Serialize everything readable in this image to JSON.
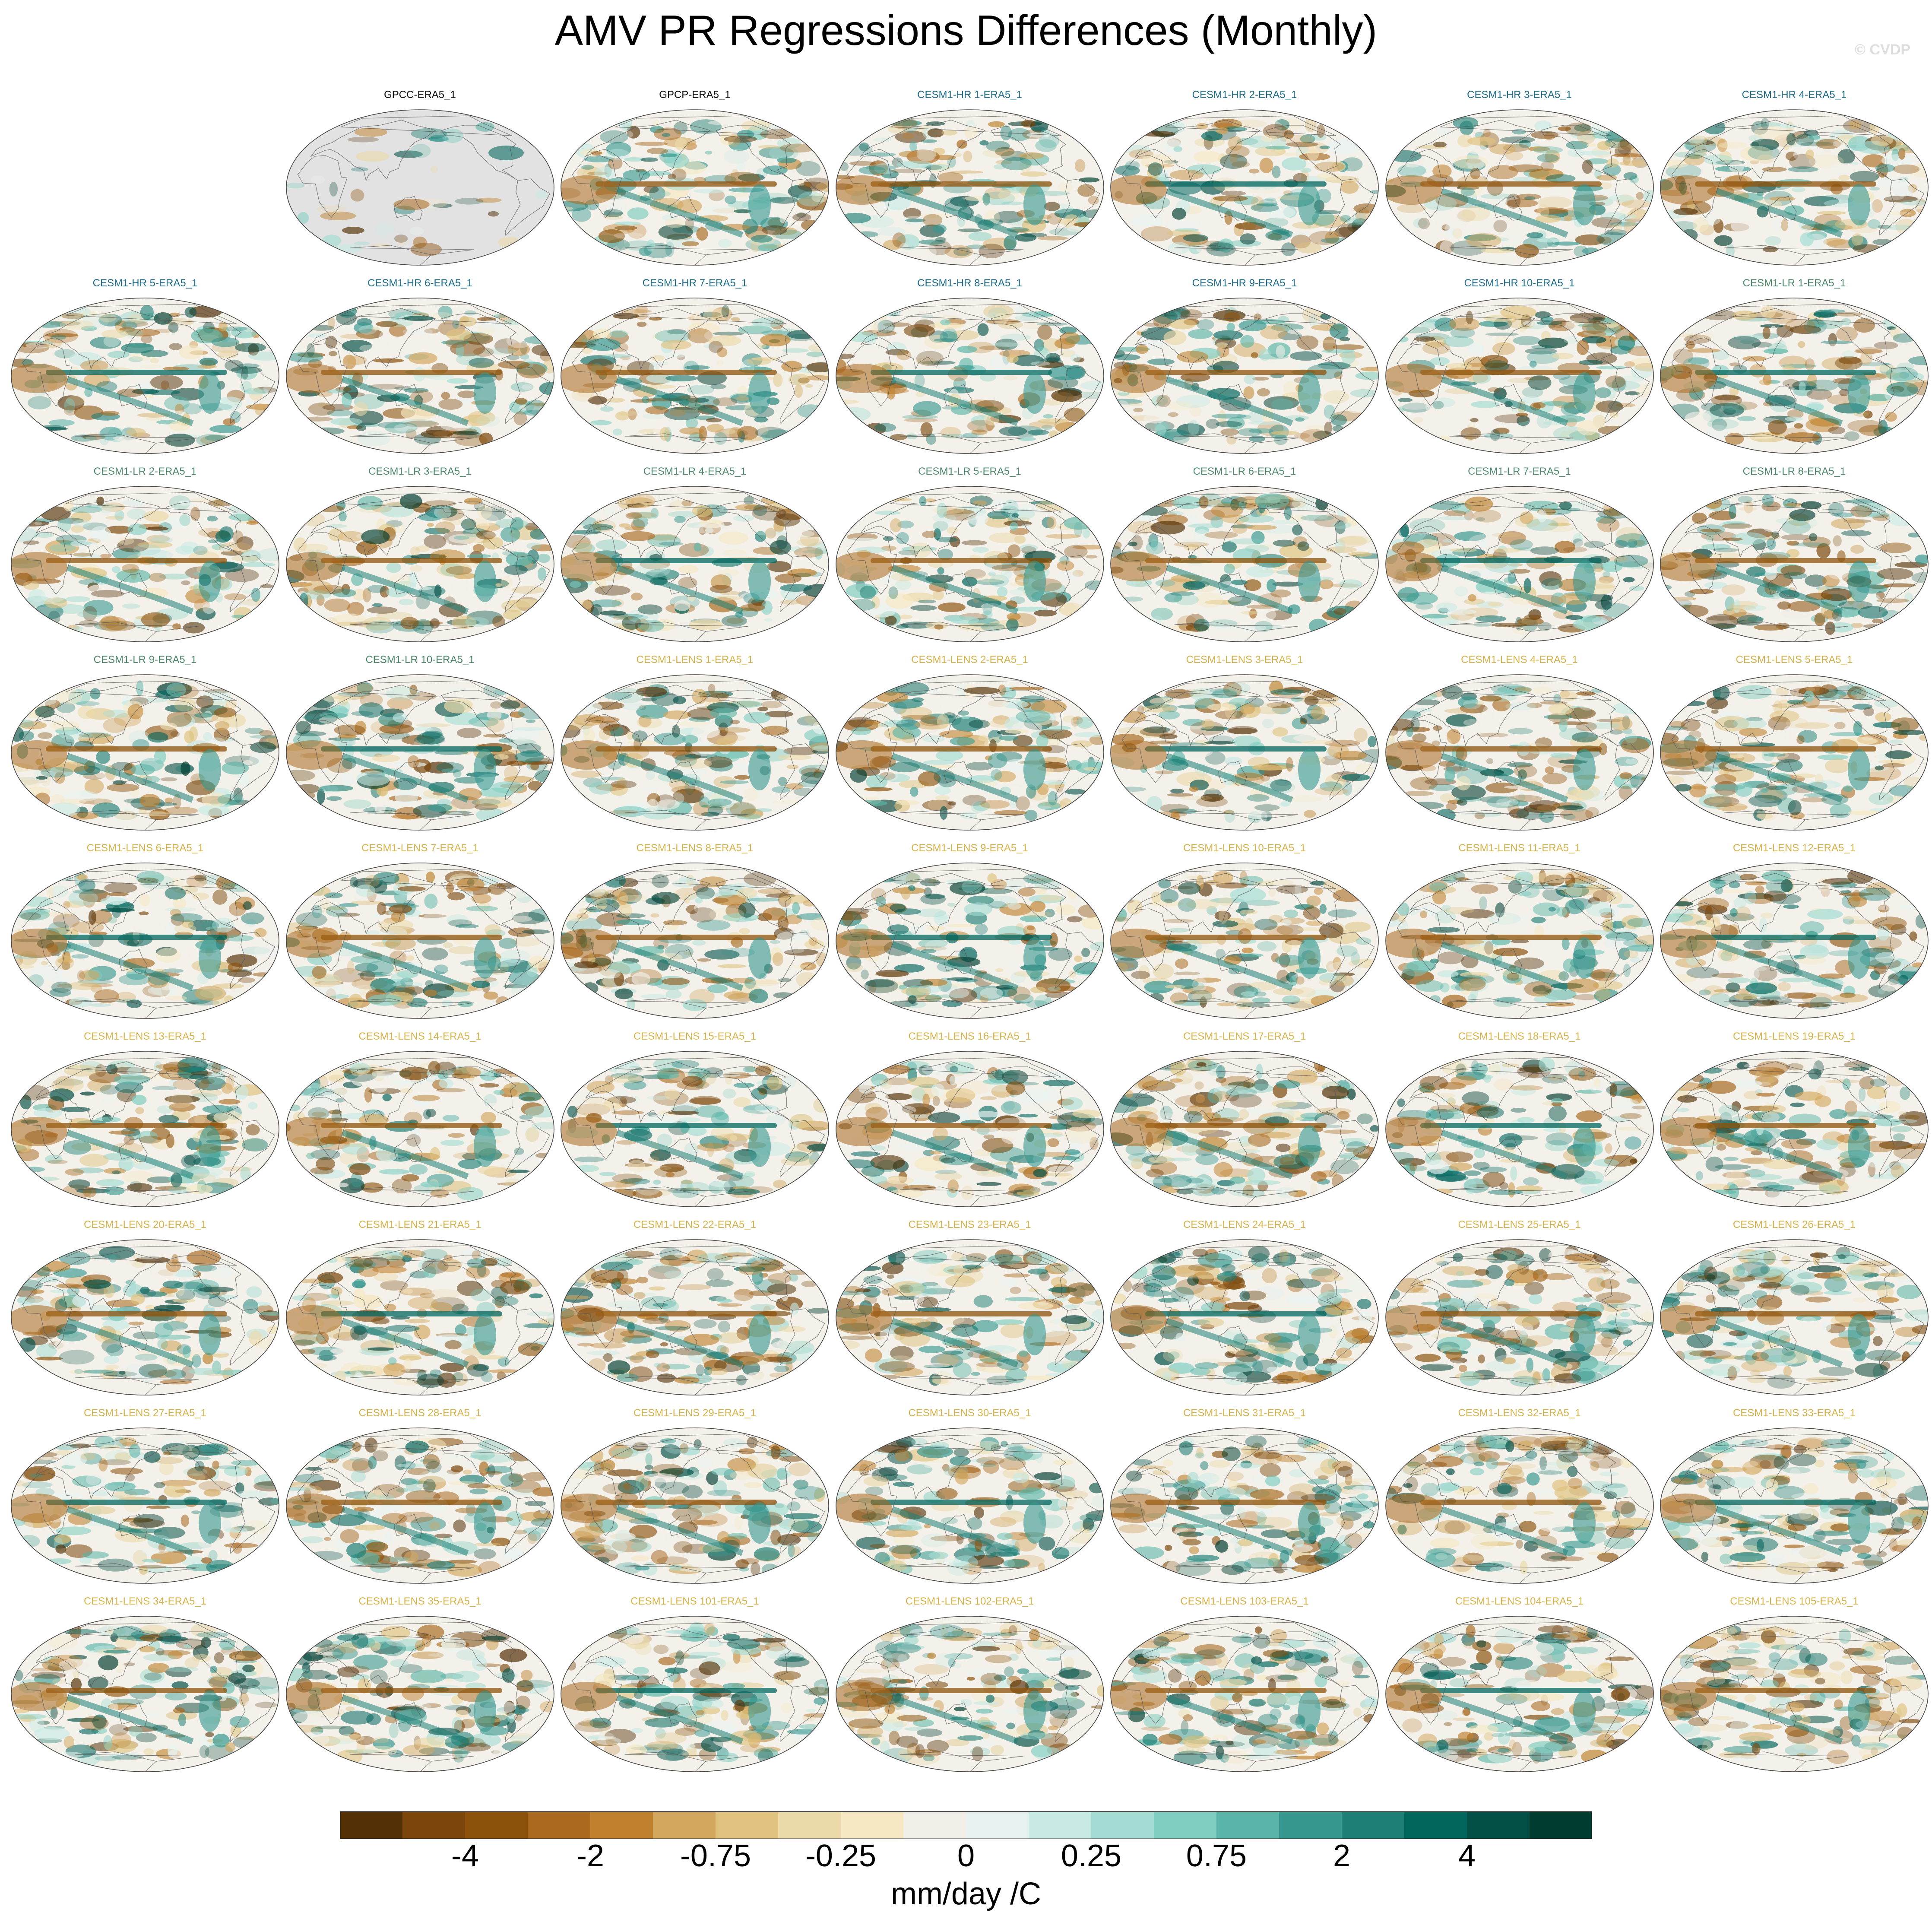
{
  "title": "AMV PR Regressions Differences (Monthly)",
  "watermark": "© CVDP",
  "colors": {
    "obs_label": "#111111",
    "hr_label": "#1f6e8c",
    "lr_label": "#4e8a6a",
    "lens_label": "#d6b34a",
    "land_grey": "#e2e2e2",
    "coast": "#555555"
  },
  "chart_data": {
    "type": "heatmap",
    "projection": "robinson",
    "units": "mm/day /C",
    "colorbar": {
      "colors": [
        "#543005",
        "#7a4609",
        "#8c510a",
        "#a8681e",
        "#bf812d",
        "#d3a75e",
        "#dfc27d",
        "#ecd9a8",
        "#f6e8c3",
        "#f2efe8",
        "#e8f3f1",
        "#c7eae5",
        "#a3dcd3",
        "#80cdc1",
        "#5ab4a7",
        "#35978f",
        "#1e7f76",
        "#01665e",
        "#024f46",
        "#003c30"
      ],
      "tick_labels": [
        "-4",
        "-2",
        "-0.75",
        "-0.25",
        "0",
        "0.25",
        "0.75",
        "2",
        "4"
      ]
    },
    "panels": [
      {
        "label": "GPCC-ERA5_1",
        "group": "obs",
        "row": 0,
        "col": 1
      },
      {
        "label": "GPCP-ERA5_1",
        "group": "obs",
        "row": 0,
        "col": 2
      },
      {
        "label": "CESM1-HR 1-ERA5_1",
        "group": "hr",
        "row": 0,
        "col": 3
      },
      {
        "label": "CESM1-HR 2-ERA5_1",
        "group": "hr",
        "row": 0,
        "col": 4
      },
      {
        "label": "CESM1-HR 3-ERA5_1",
        "group": "hr",
        "row": 0,
        "col": 5
      },
      {
        "label": "CESM1-HR 4-ERA5_1",
        "group": "hr",
        "row": 0,
        "col": 6
      },
      {
        "label": "CESM1-HR 5-ERA5_1",
        "group": "hr",
        "row": 1,
        "col": 0
      },
      {
        "label": "CESM1-HR 6-ERA5_1",
        "group": "hr",
        "row": 1,
        "col": 1
      },
      {
        "label": "CESM1-HR 7-ERA5_1",
        "group": "hr",
        "row": 1,
        "col": 2
      },
      {
        "label": "CESM1-HR 8-ERA5_1",
        "group": "hr",
        "row": 1,
        "col": 3
      },
      {
        "label": "CESM1-HR 9-ERA5_1",
        "group": "hr",
        "row": 1,
        "col": 4
      },
      {
        "label": "CESM1-HR 10-ERA5_1",
        "group": "hr",
        "row": 1,
        "col": 5
      },
      {
        "label": "CESM1-LR 1-ERA5_1",
        "group": "lr",
        "row": 1,
        "col": 6
      },
      {
        "label": "CESM1-LR 2-ERA5_1",
        "group": "lr",
        "row": 2,
        "col": 0
      },
      {
        "label": "CESM1-LR 3-ERA5_1",
        "group": "lr",
        "row": 2,
        "col": 1
      },
      {
        "label": "CESM1-LR 4-ERA5_1",
        "group": "lr",
        "row": 2,
        "col": 2
      },
      {
        "label": "CESM1-LR 5-ERA5_1",
        "group": "lr",
        "row": 2,
        "col": 3
      },
      {
        "label": "CESM1-LR 6-ERA5_1",
        "group": "lr",
        "row": 2,
        "col": 4
      },
      {
        "label": "CESM1-LR 7-ERA5_1",
        "group": "lr",
        "row": 2,
        "col": 5
      },
      {
        "label": "CESM1-LR 8-ERA5_1",
        "group": "lr",
        "row": 2,
        "col": 6
      },
      {
        "label": "CESM1-LR 9-ERA5_1",
        "group": "lr",
        "row": 3,
        "col": 0
      },
      {
        "label": "CESM1-LR 10-ERA5_1",
        "group": "lr",
        "row": 3,
        "col": 1
      },
      {
        "label": "CESM1-LENS 1-ERA5_1",
        "group": "lens",
        "row": 3,
        "col": 2
      },
      {
        "label": "CESM1-LENS 2-ERA5_1",
        "group": "lens",
        "row": 3,
        "col": 3
      },
      {
        "label": "CESM1-LENS 3-ERA5_1",
        "group": "lens",
        "row": 3,
        "col": 4
      },
      {
        "label": "CESM1-LENS 4-ERA5_1",
        "group": "lens",
        "row": 3,
        "col": 5
      },
      {
        "label": "CESM1-LENS 5-ERA5_1",
        "group": "lens",
        "row": 3,
        "col": 6
      },
      {
        "label": "CESM1-LENS 6-ERA5_1",
        "group": "lens",
        "row": 4,
        "col": 0
      },
      {
        "label": "CESM1-LENS 7-ERA5_1",
        "group": "lens",
        "row": 4,
        "col": 1
      },
      {
        "label": "CESM1-LENS 8-ERA5_1",
        "group": "lens",
        "row": 4,
        "col": 2
      },
      {
        "label": "CESM1-LENS 9-ERA5_1",
        "group": "lens",
        "row": 4,
        "col": 3
      },
      {
        "label": "CESM1-LENS 10-ERA5_1",
        "group": "lens",
        "row": 4,
        "col": 4
      },
      {
        "label": "CESM1-LENS 11-ERA5_1",
        "group": "lens",
        "row": 4,
        "col": 5
      },
      {
        "label": "CESM1-LENS 12-ERA5_1",
        "group": "lens",
        "row": 4,
        "col": 6
      },
      {
        "label": "CESM1-LENS 13-ERA5_1",
        "group": "lens",
        "row": 5,
        "col": 0
      },
      {
        "label": "CESM1-LENS 14-ERA5_1",
        "group": "lens",
        "row": 5,
        "col": 1
      },
      {
        "label": "CESM1-LENS 15-ERA5_1",
        "group": "lens",
        "row": 5,
        "col": 2
      },
      {
        "label": "CESM1-LENS 16-ERA5_1",
        "group": "lens",
        "row": 5,
        "col": 3
      },
      {
        "label": "CESM1-LENS 17-ERA5_1",
        "group": "lens",
        "row": 5,
        "col": 4
      },
      {
        "label": "CESM1-LENS 18-ERA5_1",
        "group": "lens",
        "row": 5,
        "col": 5
      },
      {
        "label": "CESM1-LENS 19-ERA5_1",
        "group": "lens",
        "row": 5,
        "col": 6
      },
      {
        "label": "CESM1-LENS 20-ERA5_1",
        "group": "lens",
        "row": 6,
        "col": 0
      },
      {
        "label": "CESM1-LENS 21-ERA5_1",
        "group": "lens",
        "row": 6,
        "col": 1
      },
      {
        "label": "CESM1-LENS 22-ERA5_1",
        "group": "lens",
        "row": 6,
        "col": 2
      },
      {
        "label": "CESM1-LENS 23-ERA5_1",
        "group": "lens",
        "row": 6,
        "col": 3
      },
      {
        "label": "CESM1-LENS 24-ERA5_1",
        "group": "lens",
        "row": 6,
        "col": 4
      },
      {
        "label": "CESM1-LENS 25-ERA5_1",
        "group": "lens",
        "row": 6,
        "col": 5
      },
      {
        "label": "CESM1-LENS 26-ERA5_1",
        "group": "lens",
        "row": 6,
        "col": 6
      },
      {
        "label": "CESM1-LENS 27-ERA5_1",
        "group": "lens",
        "row": 7,
        "col": 0
      },
      {
        "label": "CESM1-LENS 28-ERA5_1",
        "group": "lens",
        "row": 7,
        "col": 1
      },
      {
        "label": "CESM1-LENS 29-ERA5_1",
        "group": "lens",
        "row": 7,
        "col": 2
      },
      {
        "label": "CESM1-LENS 30-ERA5_1",
        "group": "lens",
        "row": 7,
        "col": 3
      },
      {
        "label": "CESM1-LENS 31-ERA5_1",
        "group": "lens",
        "row": 7,
        "col": 4
      },
      {
        "label": "CESM1-LENS 32-ERA5_1",
        "group": "lens",
        "row": 7,
        "col": 5
      },
      {
        "label": "CESM1-LENS 33-ERA5_1",
        "group": "lens",
        "row": 7,
        "col": 6
      },
      {
        "label": "CESM1-LENS 34-ERA5_1",
        "group": "lens",
        "row": 8,
        "col": 0
      },
      {
        "label": "CESM1-LENS 35-ERA5_1",
        "group": "lens",
        "row": 8,
        "col": 1
      },
      {
        "label": "CESM1-LENS 101-ERA5_1",
        "group": "lens",
        "row": 8,
        "col": 2
      },
      {
        "label": "CESM1-LENS 102-ERA5_1",
        "group": "lens",
        "row": 8,
        "col": 3
      },
      {
        "label": "CESM1-LENS 103-ERA5_1",
        "group": "lens",
        "row": 8,
        "col": 4
      },
      {
        "label": "CESM1-LENS 104-ERA5_1",
        "group": "lens",
        "row": 8,
        "col": 5
      },
      {
        "label": "CESM1-LENS 105-ERA5_1",
        "group": "lens",
        "row": 8,
        "col": 6
      }
    ]
  }
}
